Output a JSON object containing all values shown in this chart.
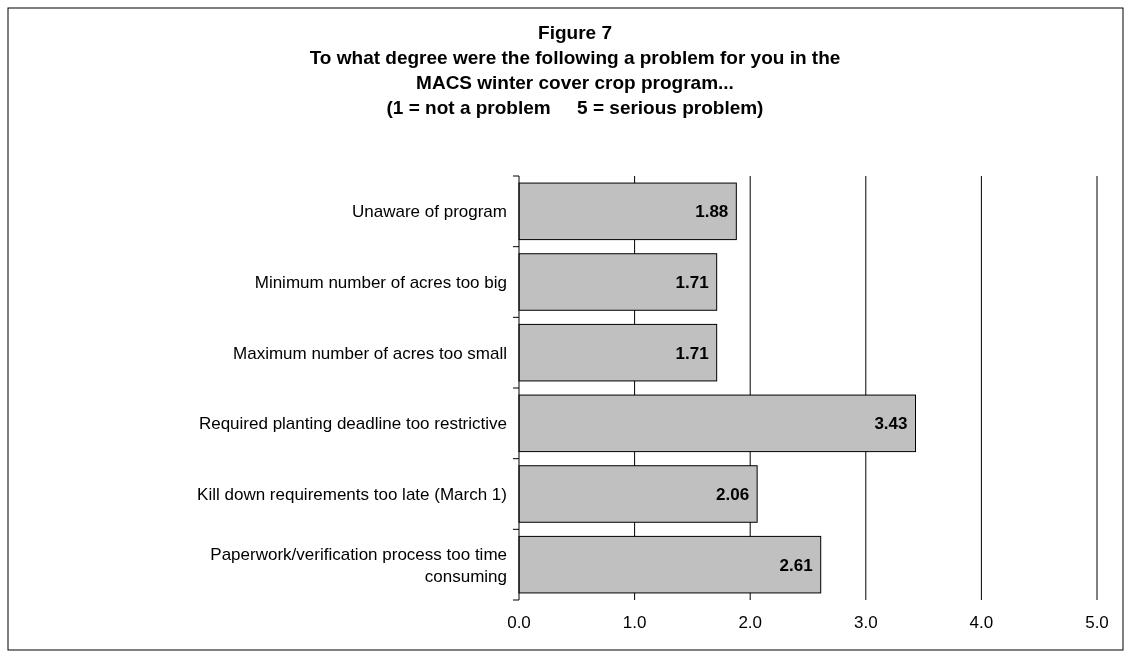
{
  "chart_data": {
    "type": "bar",
    "orientation": "horizontal",
    "title": "Figure 7\nTo what degree were the following a problem for you in the\nMACS winter cover crop program...\n(1 = not a problem     5 = serious problem)",
    "categories": [
      "Unaware of program",
      "Minimum number of acres too big",
      "Maximum number of acres too small",
      "Required planting deadline too restrictive",
      "Kill down requirements too late (March 1)",
      "Paperwork/verification process too time consuming"
    ],
    "values": [
      1.88,
      1.71,
      1.71,
      3.43,
      2.06,
      2.61
    ],
    "color": "#c0c0c0",
    "data_labels": true,
    "grid": "x",
    "xlim": [
      0,
      5
    ],
    "xticks": [
      {
        "value": 0,
        "label": "0.0"
      },
      {
        "value": 1,
        "label": "1.0"
      },
      {
        "value": 2,
        "label": "2.0"
      },
      {
        "value": 3,
        "label": "3.0"
      },
      {
        "value": 4,
        "label": "4.0"
      },
      {
        "value": 5,
        "label": "5.0"
      }
    ]
  }
}
